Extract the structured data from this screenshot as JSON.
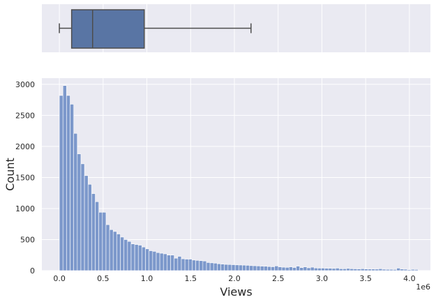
{
  "chart_data": [
    {
      "type": "boxplot",
      "orientation": "horizontal",
      "whisker_low": 0.0,
      "q1": 0.14,
      "median": 0.38,
      "q3": 0.97,
      "whisker_high": 2.19,
      "x_scale_multiplier": "1e6",
      "xlim": [
        -0.2,
        4.24
      ],
      "grid": true,
      "color": "#5975a4"
    },
    {
      "type": "bar",
      "subtype": "histogram",
      "xlabel": "Views",
      "ylabel": "Count",
      "x_offset_label": "1e6",
      "xlim": [
        -0.2,
        4.24
      ],
      "ylim": [
        0,
        3100
      ],
      "xticks": [
        0.0,
        0.5,
        1.0,
        1.5,
        2.0,
        2.5,
        3.0,
        3.5,
        4.0
      ],
      "xtick_labels": [
        "0.0",
        "0.5",
        "1.0",
        "1.5",
        "2.0",
        "2.5",
        "3.0",
        "3.5",
        "4.0"
      ],
      "yticks": [
        0,
        500,
        1000,
        1500,
        2000,
        2500,
        3000
      ],
      "ytick_labels": [
        "0",
        "500",
        "1000",
        "1500",
        "2000",
        "2500",
        "3000"
      ],
      "grid": true,
      "color": "#7290c8",
      "bin_start": 0.0,
      "bin_width": 0.041,
      "values": [
        2820,
        2980,
        2820,
        2680,
        2210,
        1880,
        1720,
        1530,
        1390,
        1240,
        1110,
        940,
        940,
        740,
        660,
        630,
        590,
        540,
        500,
        470,
        430,
        420,
        410,
        380,
        350,
        320,
        310,
        290,
        280,
        270,
        250,
        250,
        200,
        230,
        190,
        185,
        185,
        170,
        165,
        160,
        155,
        130,
        125,
        120,
        110,
        105,
        100,
        98,
        95,
        92,
        90,
        88,
        85,
        80,
        78,
        75,
        72,
        70,
        65,
        62,
        75,
        60,
        55,
        52,
        60,
        50,
        72,
        48,
        60,
        45,
        55,
        42,
        40,
        40,
        38,
        38,
        35,
        40,
        30,
        30,
        35,
        30,
        28,
        27,
        30,
        26,
        25,
        25,
        24,
        30,
        22,
        20,
        20,
        18,
        40,
        25,
        22,
        15,
        20,
        18
      ]
    }
  ]
}
